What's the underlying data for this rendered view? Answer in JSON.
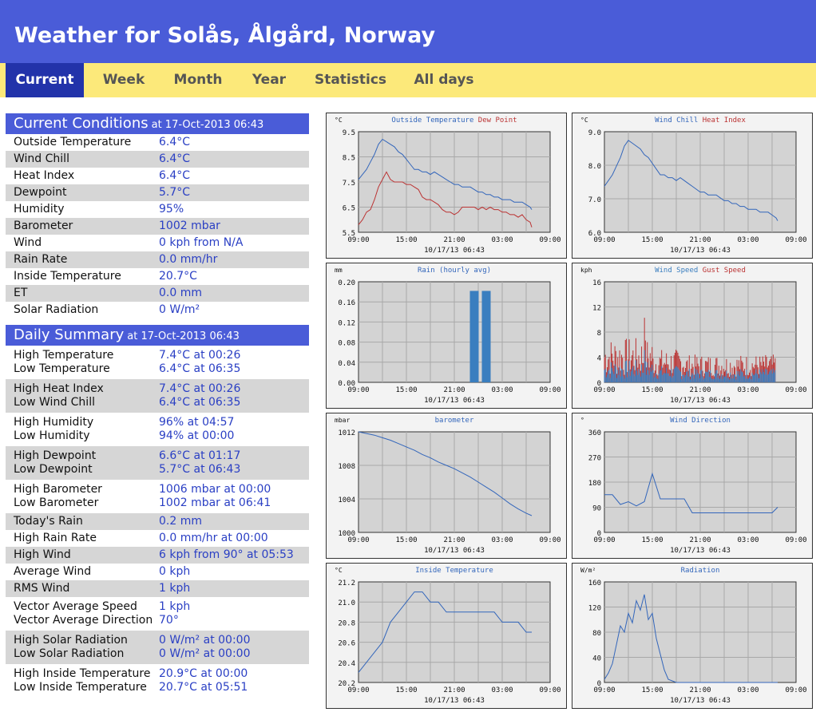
{
  "header": {
    "title": "Weather for Solås, Ålgård, Norway"
  },
  "nav": {
    "tabs": [
      "Current",
      "Week",
      "Month",
      "Year",
      "Statistics",
      "All days"
    ],
    "active": 0
  },
  "current": {
    "title": "Current Conditions",
    "timestamp": "at 17-Oct-2013 06:43",
    "rows": [
      {
        "label": "Outside Temperature",
        "value": "6.4°C"
      },
      {
        "label": "Wind Chill",
        "value": "6.4°C"
      },
      {
        "label": "Heat Index",
        "value": "6.4°C"
      },
      {
        "label": "Dewpoint",
        "value": "5.7°C"
      },
      {
        "label": "Humidity",
        "value": "95%"
      },
      {
        "label": "Barometer",
        "value": "1002 mbar"
      },
      {
        "label": "Wind",
        "value": "0 kph from N/A"
      },
      {
        "label": "Rain Rate",
        "value": "0.0 mm/hr"
      },
      {
        "label": "Inside Temperature",
        "value": "20.7°C"
      },
      {
        "label": "ET",
        "value": "0.0 mm"
      },
      {
        "label": "Solar Radiation",
        "value": "0 W/m²"
      }
    ]
  },
  "daily": {
    "title": "Daily Summary",
    "timestamp": "at 17-Oct-2013 06:43",
    "groups": [
      [
        {
          "label": "High Temperature",
          "value": "7.4°C at 00:26"
        },
        {
          "label": "Low Temperature",
          "value": "6.4°C at 06:35"
        }
      ],
      [
        {
          "label": "High Heat Index",
          "value": "7.4°C at 00:26"
        },
        {
          "label": "Low Wind Chill",
          "value": "6.4°C at 06:35"
        }
      ],
      [
        {
          "label": "High Humidity",
          "value": "96% at 04:57"
        },
        {
          "label": "Low Humidity",
          "value": "94% at 00:00"
        }
      ],
      [
        {
          "label": "High Dewpoint",
          "value": "6.6°C at 01:17"
        },
        {
          "label": "Low Dewpoint",
          "value": "5.7°C at 06:43"
        }
      ],
      [
        {
          "label": "High Barometer",
          "value": "1006 mbar at 00:00"
        },
        {
          "label": "Low Barometer",
          "value": "1002 mbar at 06:41"
        }
      ],
      [
        {
          "label": "Today's Rain",
          "value": "0.2 mm"
        }
      ],
      [
        {
          "label": "High Rain Rate",
          "value": "0.0 mm/hr at 00:00"
        }
      ],
      [
        {
          "label": "High Wind",
          "value": "6 kph from 90° at 05:53"
        }
      ],
      [
        {
          "label": "Average Wind",
          "value": "0 kph"
        }
      ],
      [
        {
          "label": "RMS Wind",
          "value": "1 kph"
        }
      ],
      [
        {
          "label": "Vector Average Speed",
          "value": "1 kph"
        },
        {
          "label": "Vector Average Direction",
          "value": "70°"
        }
      ],
      [
        {
          "label": "High Solar Radiation",
          "value": "0 W/m² at 00:00"
        },
        {
          "label": "Low Solar Radiation",
          "value": "0 W/m² at 00:00"
        }
      ],
      [
        {
          "label": "High Inside Temperature",
          "value": "20.9°C at 00:00"
        },
        {
          "label": "Low Inside Temperature",
          "value": "20.7°C at 05:51"
        }
      ]
    ]
  },
  "chart_data": [
    {
      "type": "line",
      "unit": "°C",
      "title": "",
      "ylim": [
        5.5,
        9.5
      ],
      "yticks": [
        "9.5",
        "8.5",
        "7.5",
        "6.5",
        "5.5"
      ],
      "x_ticks": [
        "09:00",
        "15:00",
        "21:00",
        "03:00",
        "09:00"
      ],
      "date_label": "10/17/13 06:43",
      "series": [
        {
          "name": "Outside Temperature",
          "color": "#3366bb",
          "x": [
            0,
            0.5,
            1,
            1.5,
            2,
            2.5,
            3,
            3.5,
            4,
            4.5,
            5,
            5.5,
            6,
            6.5,
            7,
            7.5,
            8,
            8.5,
            9,
            9.5,
            10,
            10.5,
            11,
            11.5,
            12,
            12.5,
            13,
            13.5,
            14,
            14.5,
            15,
            15.5,
            16,
            16.5,
            17,
            17.5,
            18,
            18.5,
            19,
            19.5,
            20,
            20.5,
            21,
            21.5,
            21.7
          ],
          "y": [
            7.6,
            7.8,
            8.0,
            8.3,
            8.6,
            9.0,
            9.2,
            9.1,
            9.0,
            8.9,
            8.7,
            8.6,
            8.4,
            8.2,
            8.0,
            8.0,
            7.9,
            7.9,
            7.8,
            7.9,
            7.8,
            7.7,
            7.6,
            7.5,
            7.4,
            7.4,
            7.3,
            7.3,
            7.3,
            7.2,
            7.1,
            7.1,
            7.0,
            7.0,
            6.9,
            6.9,
            6.8,
            6.8,
            6.8,
            6.7,
            6.7,
            6.7,
            6.6,
            6.5,
            6.4
          ]
        },
        {
          "name": "Dew Point",
          "color": "#bb3333",
          "x": [
            0,
            0.5,
            1,
            1.5,
            2,
            2.5,
            3,
            3.5,
            4,
            4.5,
            5,
            5.5,
            6,
            6.5,
            7,
            7.5,
            8,
            8.5,
            9,
            9.5,
            10,
            10.5,
            11,
            11.5,
            12,
            12.5,
            13,
            13.5,
            14,
            14.5,
            15,
            15.5,
            16,
            16.5,
            17,
            17.5,
            18,
            18.5,
            19,
            19.5,
            20,
            20.5,
            21,
            21.5,
            21.7
          ],
          "y": [
            5.8,
            6.0,
            6.3,
            6.4,
            6.8,
            7.3,
            7.6,
            7.9,
            7.6,
            7.5,
            7.5,
            7.5,
            7.4,
            7.4,
            7.3,
            7.2,
            6.9,
            6.8,
            6.8,
            6.7,
            6.6,
            6.4,
            6.3,
            6.3,
            6.2,
            6.3,
            6.5,
            6.5,
            6.5,
            6.5,
            6.4,
            6.5,
            6.4,
            6.5,
            6.4,
            6.4,
            6.3,
            6.3,
            6.2,
            6.2,
            6.1,
            6.2,
            6.0,
            5.9,
            5.7
          ]
        }
      ]
    },
    {
      "type": "line",
      "unit": "°C",
      "title": "",
      "ylim": [
        6.0,
        9.5
      ],
      "yticks": [
        "9.0",
        "8.0",
        "7.0",
        "6.0"
      ],
      "x_ticks": [
        "09:00",
        "15:00",
        "21:00",
        "03:00",
        "09:00"
      ],
      "date_label": "10/17/13 06:43",
      "series": [
        {
          "name": "Wind Chill",
          "color": "#3366bb",
          "x": [
            0,
            0.5,
            1,
            1.5,
            2,
            2.5,
            3,
            3.5,
            4,
            4.5,
            5,
            5.5,
            6,
            6.5,
            7,
            7.5,
            8,
            8.5,
            9,
            9.5,
            10,
            10.5,
            11,
            11.5,
            12,
            12.5,
            13,
            13.5,
            14,
            14.5,
            15,
            15.5,
            16,
            16.5,
            17,
            17.5,
            18,
            18.5,
            19,
            19.5,
            20,
            20.5,
            21,
            21.5,
            21.7
          ],
          "y": [
            7.6,
            7.8,
            8.0,
            8.3,
            8.6,
            9.0,
            9.2,
            9.1,
            9.0,
            8.9,
            8.7,
            8.6,
            8.4,
            8.2,
            8.0,
            8.0,
            7.9,
            7.9,
            7.8,
            7.9,
            7.8,
            7.7,
            7.6,
            7.5,
            7.4,
            7.4,
            7.3,
            7.3,
            7.3,
            7.2,
            7.1,
            7.1,
            7.0,
            7.0,
            6.9,
            6.9,
            6.8,
            6.8,
            6.8,
            6.7,
            6.7,
            6.7,
            6.6,
            6.5,
            6.4
          ]
        },
        {
          "name": "Heat Index",
          "color": "#bb3333",
          "x": [],
          "y": []
        }
      ]
    },
    {
      "type": "bar",
      "unit": "mm",
      "title": "Rain (hourly avg)",
      "ylim": [
        0,
        0.22
      ],
      "yticks": [
        "0.20",
        "0.16",
        "0.12",
        "0.08",
        "0.04",
        "0.00"
      ],
      "x_ticks": [
        "09:00",
        "15:00",
        "21:00",
        "03:00",
        "09:00"
      ],
      "date_label": "10/17/13 06:43",
      "series": [
        {
          "name": "Rain (hourly avg)",
          "color": "#3a7ebf",
          "x": [
            14.5,
            16.0
          ],
          "y": [
            0.2,
            0.2
          ],
          "width": 1.1
        }
      ]
    },
    {
      "type": "bar",
      "unit": "kph",
      "title": "",
      "ylim": [
        0,
        18
      ],
      "yticks": [
        "16",
        "12",
        "8",
        "4",
        "0"
      ],
      "x_ticks": [
        "09:00",
        "15:00",
        "21:00",
        "03:00",
        "09:00"
      ],
      "date_label": "10/17/13 06:43",
      "series": [
        {
          "name": "Wind Speed",
          "color": "#3a7ebf",
          "x": [],
          "y": []
        },
        {
          "name": "Gust Speed",
          "color": "#bb3333",
          "x": [],
          "y": []
        }
      ]
    },
    {
      "type": "line",
      "unit": "mbar",
      "title": "barometer",
      "ylim": [
        1000,
        1012
      ],
      "yticks": [
        "1012",
        "1008",
        "1004",
        "1000"
      ],
      "x_ticks": [
        "09:00",
        "15:00",
        "21:00",
        "03:00",
        "09:00"
      ],
      "date_label": "10/17/13 06:43",
      "series": [
        {
          "name": "barometer",
          "color": "#3366bb",
          "x": [
            0,
            1,
            2,
            3,
            4,
            5,
            6,
            7,
            8,
            9,
            10,
            11,
            12,
            13,
            14,
            15,
            16,
            17,
            18,
            19,
            20,
            21,
            21.7
          ],
          "y": [
            1012.0,
            1011.8,
            1011.6,
            1011.3,
            1011.0,
            1010.6,
            1010.2,
            1009.8,
            1009.3,
            1008.9,
            1008.4,
            1008.0,
            1007.6,
            1007.1,
            1006.6,
            1006.0,
            1005.4,
            1004.8,
            1004.1,
            1003.4,
            1002.8,
            1002.3,
            1002.0
          ]
        }
      ]
    },
    {
      "type": "scatter",
      "unit": "°",
      "title": "Wind Direction",
      "ylim": [
        0,
        360
      ],
      "yticks": [
        "360",
        "270",
        "180",
        "90",
        "0"
      ],
      "x_ticks": [
        "09:00",
        "15:00",
        "21:00",
        "03:00",
        "09:00"
      ],
      "date_label": "10/17/13 06:43",
      "series": [
        {
          "name": "Wind Direction",
          "color": "#3366bb",
          "x": [
            0,
            1,
            2,
            3,
            4,
            5,
            6,
            7,
            8,
            9,
            10,
            11,
            12,
            13,
            14,
            15,
            16,
            17,
            18,
            19,
            20,
            21,
            21.7
          ],
          "y": [
            135,
            135,
            100,
            110,
            95,
            110,
            210,
            120,
            120,
            120,
            120,
            70,
            70,
            70,
            70,
            70,
            70,
            70,
            70,
            70,
            70,
            70,
            90
          ]
        }
      ]
    },
    {
      "type": "line",
      "unit": "°C",
      "title": "Inside Temperature",
      "ylim": [
        20.2,
        21.2
      ],
      "yticks": [
        "21.2",
        "21.0",
        "20.8",
        "20.6",
        "20.4",
        "20.2"
      ],
      "x_ticks": [
        "09:00",
        "15:00",
        "21:00",
        "03:00",
        "09:00"
      ],
      "date_label": "10/17/13 06:43",
      "series": [
        {
          "name": "Inside Temperature",
          "color": "#3366bb",
          "x": [
            0,
            1,
            2,
            3,
            4,
            5,
            6,
            7,
            8,
            9,
            10,
            11,
            12,
            13,
            14,
            15,
            16,
            17,
            18,
            19,
            20,
            21,
            21.7
          ],
          "y": [
            20.3,
            20.4,
            20.5,
            20.6,
            20.8,
            20.9,
            21.0,
            21.1,
            21.1,
            21.0,
            21.0,
            20.9,
            20.9,
            20.9,
            20.9,
            20.9,
            20.9,
            20.9,
            20.8,
            20.8,
            20.8,
            20.7,
            20.7
          ]
        }
      ]
    },
    {
      "type": "line",
      "unit": "W/m²",
      "title": "Radiation",
      "ylim": [
        0,
        160
      ],
      "yticks": [
        "160",
        "120",
        "80",
        "40",
        "0"
      ],
      "x_ticks": [
        "09:00",
        "15:00",
        "21:00",
        "03:00",
        "09:00"
      ],
      "date_label": "10/17/13 06:43",
      "series": [
        {
          "name": "Radiation",
          "color": "#3366bb",
          "x": [
            0,
            0.5,
            1,
            1.5,
            2,
            2.5,
            3,
            3.5,
            4,
            4.5,
            5,
            5.5,
            6,
            6.5,
            7,
            7.5,
            8,
            9,
            10,
            12,
            14,
            16,
            18,
            20,
            21.7
          ],
          "y": [
            5,
            15,
            30,
            60,
            90,
            80,
            110,
            95,
            130,
            115,
            140,
            100,
            110,
            70,
            45,
            20,
            5,
            0,
            0,
            0,
            0,
            0,
            0,
            0,
            0
          ]
        }
      ]
    }
  ]
}
